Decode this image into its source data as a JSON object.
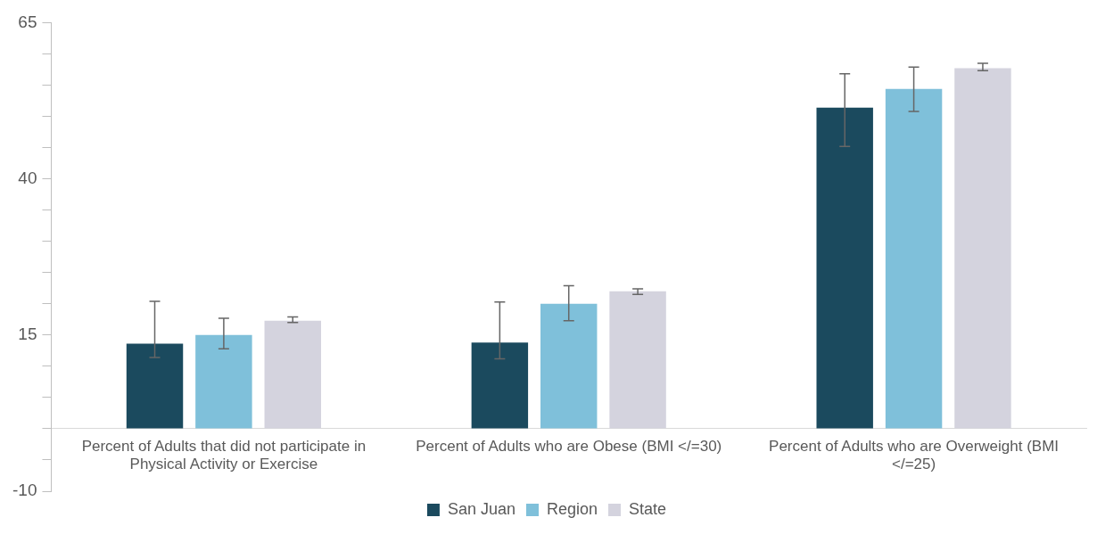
{
  "chart_data": {
    "type": "bar",
    "categories": [
      "Percent of Adults that did not participate in Physical Activity or Exercise",
      "Percent of Adults who are Obese (BMI </=30)",
      "Percent of Adults who are Overweight (BMI </=25)"
    ],
    "series": [
      {
        "name": "San Juan",
        "color": "#1b4a5e",
        "values": [
          13.6,
          13.8,
          51.4
        ],
        "errors": [
          [
            11.4,
            20.4
          ],
          [
            11.2,
            20.3
          ],
          [
            45.2,
            56.8
          ]
        ]
      },
      {
        "name": "Region",
        "color": "#7fc0da",
        "values": [
          15.0,
          20.0,
          54.4
        ],
        "errors": [
          [
            12.8,
            17.7
          ],
          [
            17.3,
            22.9
          ],
          [
            50.8,
            57.9
          ]
        ]
      },
      {
        "name": "State",
        "color": "#d4d3de",
        "values": [
          17.3,
          22.0,
          57.7
        ],
        "errors": [
          [
            17.0,
            17.9
          ],
          [
            21.5,
            22.4
          ],
          [
            57.3,
            58.5
          ]
        ]
      }
    ],
    "ylim": [
      -10,
      65
    ],
    "yticks": [
      -10,
      {
        "value": -5,
        "label": null
      },
      {
        "value": 0,
        "label": null
      },
      {
        "value": 5,
        "label": null
      },
      {
        "value": 10,
        "label": null
      },
      15,
      {
        "value": 20,
        "label": null
      },
      {
        "value": 25,
        "label": null
      },
      {
        "value": 30,
        "label": null
      },
      {
        "value": 35,
        "label": null
      },
      40,
      {
        "value": 45,
        "label": null
      },
      {
        "value": 50,
        "label": null
      },
      {
        "value": 55,
        "label": null
      },
      {
        "value": 60,
        "label": null
      },
      65
    ],
    "grid": false,
    "legend": "bottom"
  }
}
